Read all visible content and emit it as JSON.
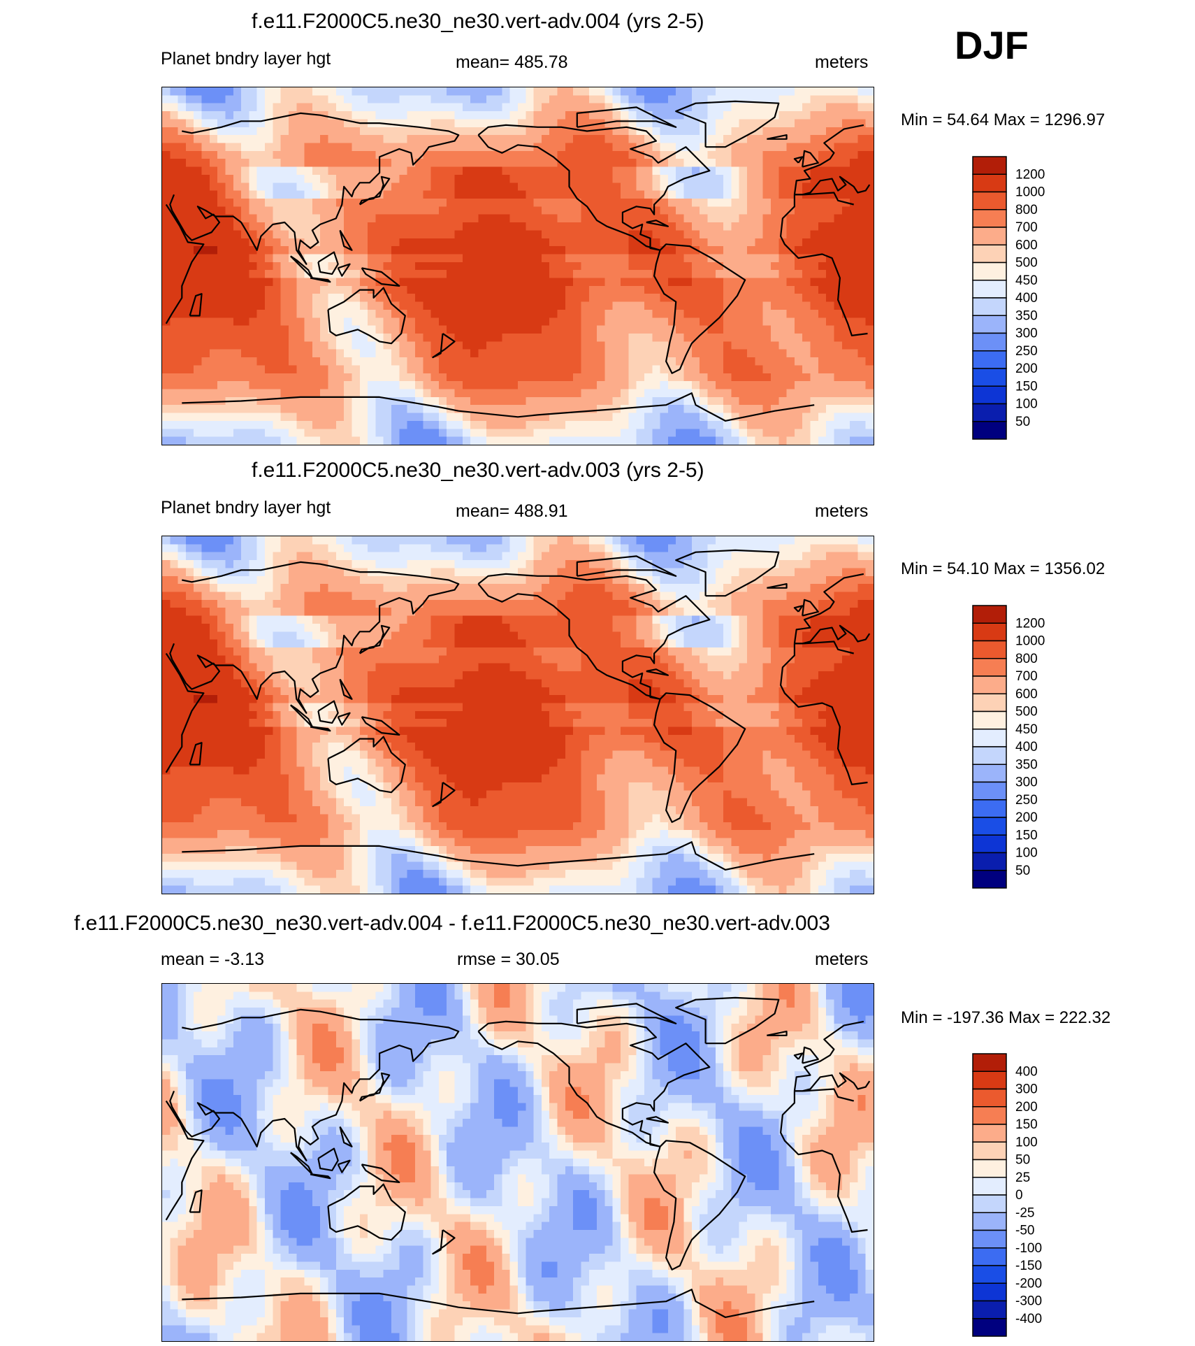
{
  "season": "DJF",
  "panels": [
    {
      "title": "f.e11.F2000C5.ne30_ne30.vert-adv.004 (yrs 2-5)",
      "left": "Planet bndry layer hgt",
      "center": "mean= 485.78",
      "right": "meters",
      "minmax": "Min =  54.64 Max = 1296.97",
      "field": "abs",
      "labelbar": {
        "levels": [
          "50",
          "100",
          "150",
          "200",
          "250",
          "300",
          "350",
          "400",
          "450",
          "500",
          "600",
          "700",
          "800",
          "1000",
          "1200"
        ],
        "colors": [
          "#00007f",
          "#0a1eae",
          "#0d35d5",
          "#1a4ee6",
          "#3c6cf2",
          "#6c90f7",
          "#9bb4fa",
          "#c4d6fc",
          "#e3edfe",
          "#fef0e0",
          "#fdd2b6",
          "#fcac8a",
          "#f67e53",
          "#eb5a2e",
          "#d83a14",
          "#b21e08",
          "#800000"
        ]
      }
    },
    {
      "title": "f.e11.F2000C5.ne30_ne30.vert-adv.003 (yrs 2-5)",
      "left": "Planet bndry layer hgt",
      "center": "mean= 488.91",
      "right": "meters",
      "minmax": "Min =  54.10 Max = 1356.02",
      "field": "abs",
      "labelbar": {
        "levels": [
          "50",
          "100",
          "150",
          "200",
          "250",
          "300",
          "350",
          "400",
          "450",
          "500",
          "600",
          "700",
          "800",
          "1000",
          "1200"
        ],
        "colors": [
          "#00007f",
          "#0a1eae",
          "#0d35d5",
          "#1a4ee6",
          "#3c6cf2",
          "#6c90f7",
          "#9bb4fa",
          "#c4d6fc",
          "#e3edfe",
          "#fef0e0",
          "#fdd2b6",
          "#fcac8a",
          "#f67e53",
          "#eb5a2e",
          "#d83a14",
          "#b21e08",
          "#800000"
        ]
      }
    },
    {
      "title": "f.e11.F2000C5.ne30_ne30.vert-adv.004 - f.e11.F2000C5.ne30_ne30.vert-adv.003",
      "left": "mean =  -3.13",
      "center": "rmse =  30.05",
      "right": "meters",
      "minmax": "Min = -197.36 Max = 222.32",
      "field": "diff",
      "labelbar": {
        "levels": [
          "-400",
          "-300",
          "-200",
          "-150",
          "-100",
          "-50",
          "-25",
          "0",
          "25",
          "50",
          "100",
          "150",
          "200",
          "300",
          "400"
        ],
        "colors": [
          "#00007f",
          "#0a1eae",
          "#0d35d5",
          "#1a4ee6",
          "#3c6cf2",
          "#6c90f7",
          "#9bb4fa",
          "#c4d6fc",
          "#e3edfe",
          "#fef0e0",
          "#fdd2b6",
          "#fcac8a",
          "#f67e53",
          "#eb5a2e",
          "#d83a14",
          "#b21e08",
          "#800000"
        ]
      }
    }
  ],
  "chart_data": [
    {
      "type": "heatmap",
      "title": "f.e11.F2000C5.ne30_ne30.vert-adv.004 (yrs 2-5)",
      "variable": "Planet bndry layer hgt",
      "units": "meters",
      "mean": 485.78,
      "min": 54.64,
      "max": 1296.97,
      "levels": [
        50,
        100,
        150,
        200,
        250,
        300,
        350,
        400,
        450,
        500,
        600,
        700,
        800,
        1000,
        1200
      ]
    },
    {
      "type": "heatmap",
      "title": "f.e11.F2000C5.ne30_ne30.vert-adv.003 (yrs 2-5)",
      "variable": "Planet bndry layer hgt",
      "units": "meters",
      "mean": 488.91,
      "min": 54.1,
      "max": 1356.02,
      "levels": [
        50,
        100,
        150,
        200,
        250,
        300,
        350,
        400,
        450,
        500,
        600,
        700,
        800,
        1000,
        1200
      ]
    },
    {
      "type": "heatmap",
      "title": "f.e11.F2000C5.ne30_ne30.vert-adv.004 - f.e11.F2000C5.ne30_ne30.vert-adv.003",
      "units": "meters",
      "mean": -3.13,
      "rmse": 30.05,
      "min": -197.36,
      "max": 222.32,
      "levels": [
        -400,
        -300,
        -200,
        -150,
        -100,
        -50,
        -25,
        0,
        25,
        50,
        100,
        150,
        200,
        300,
        400
      ]
    }
  ]
}
